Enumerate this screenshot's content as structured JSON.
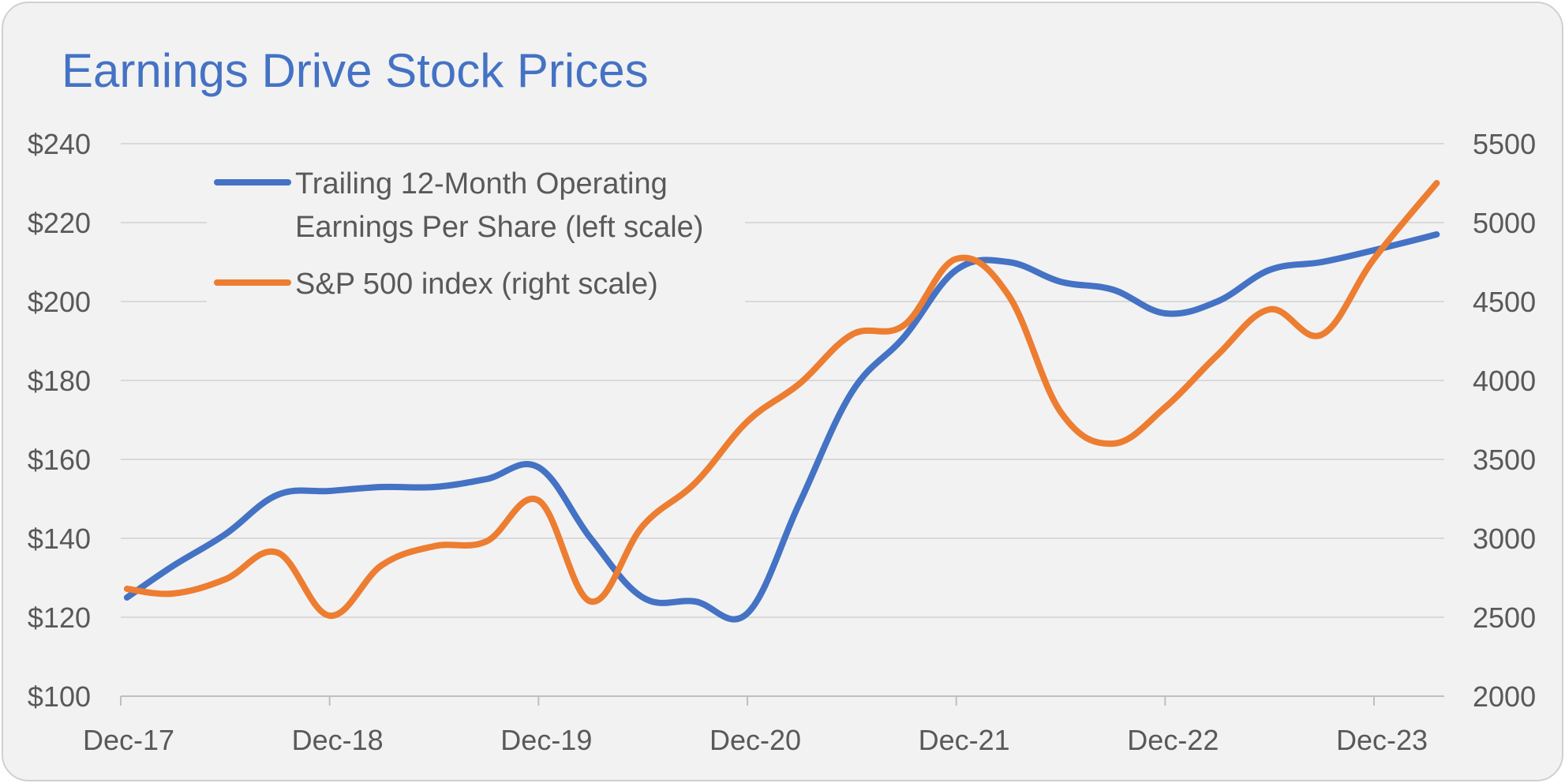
{
  "chart_data": {
    "type": "line",
    "title": "Earnings Drive Stock Prices",
    "categories": [
      "Dec-17",
      "Dec-18",
      "Dec-19",
      "Dec-20",
      "Dec-21",
      "Dec-22",
      "Dec-23"
    ],
    "x_unit": "years since Dec-17",
    "x_range": [
      0,
      6.35
    ],
    "y_left": {
      "ticks": [
        "$100",
        "$120",
        "$140",
        "$160",
        "$180",
        "$200",
        "$220",
        "$240"
      ],
      "min": 100,
      "max": 240
    },
    "y_right": {
      "ticks": [
        "2000",
        "2500",
        "3000",
        "3500",
        "4000",
        "4500",
        "5000",
        "5500"
      ],
      "min": 2000,
      "max": 5500
    },
    "grid": true,
    "legend_position": "top-left",
    "series": [
      {
        "name": "Trailing 12-Month Operating Earnings Per Share (left scale)",
        "legend_lines": [
          "Trailing 12-Month Operating",
          "Earnings Per Share (left scale)"
        ],
        "axis": "left",
        "color": "#4472c4",
        "x": [
          0.03,
          0.25,
          0.5,
          0.75,
          1.0,
          1.25,
          1.5,
          1.75,
          2.0,
          2.25,
          2.5,
          2.75,
          3.0,
          3.25,
          3.5,
          3.75,
          4.0,
          4.25,
          4.5,
          4.75,
          5.0,
          5.25,
          5.5,
          5.75,
          6.0,
          6.3
        ],
        "values": [
          125,
          133,
          141,
          151,
          152,
          153,
          153,
          155,
          158,
          140,
          125,
          124,
          121,
          149,
          177,
          191,
          208,
          210,
          205,
          203,
          197,
          200,
          208,
          210,
          213,
          217
        ]
      },
      {
        "name": "S&P 500 index (right scale)",
        "legend_lines": [
          "S&P 500 index (right scale)"
        ],
        "axis": "right",
        "color": "#ed7d31",
        "x": [
          0.03,
          0.25,
          0.5,
          0.75,
          1.0,
          1.25,
          1.5,
          1.75,
          2.0,
          2.25,
          2.5,
          2.75,
          3.0,
          3.25,
          3.5,
          3.75,
          4.0,
          4.25,
          4.5,
          4.75,
          5.0,
          5.25,
          5.5,
          5.75,
          6.0,
          6.3
        ],
        "values": [
          2680,
          2650,
          2740,
          2910,
          2510,
          2830,
          2950,
          2980,
          3240,
          2600,
          3080,
          3350,
          3740,
          3980,
          4290,
          4350,
          4770,
          4540,
          3800,
          3600,
          3830,
          4160,
          4450,
          4290,
          4770,
          5250
        ]
      }
    ]
  }
}
